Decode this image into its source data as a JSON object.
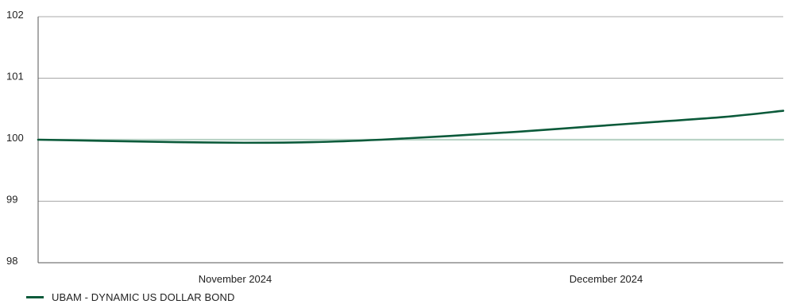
{
  "chart_data": {
    "type": "line",
    "title": "",
    "xlabel": "",
    "ylabel": "",
    "ylim": [
      98,
      102
    ],
    "y_ticks": [
      "102",
      "101",
      "100",
      "99",
      "98"
    ],
    "x_tick_labels": [
      "November 2024",
      "December 2024"
    ],
    "grid": "horizontal",
    "legend_position": "bottom-left",
    "series": [
      {
        "name": "UBAM - DYNAMIC US DOLLAR BOND",
        "color": "#0b5a3a",
        "x": [
          "2024-10-16",
          "2024-10-23",
          "2024-10-30",
          "2024-11-06",
          "2024-11-13",
          "2024-11-20",
          "2024-11-27",
          "2024-12-04",
          "2024-12-11",
          "2024-12-18",
          "2024-12-25",
          "2024-12-31"
        ],
        "values": [
          100.0,
          99.98,
          99.96,
          99.95,
          99.96,
          100.0,
          100.06,
          100.13,
          100.21,
          100.29,
          100.37,
          100.47
        ]
      },
      {
        "name": "",
        "color": "#b9d3c6",
        "x": [
          "2024-10-16",
          "2024-12-31"
        ],
        "values": [
          100.0,
          100.0
        ]
      }
    ]
  }
}
